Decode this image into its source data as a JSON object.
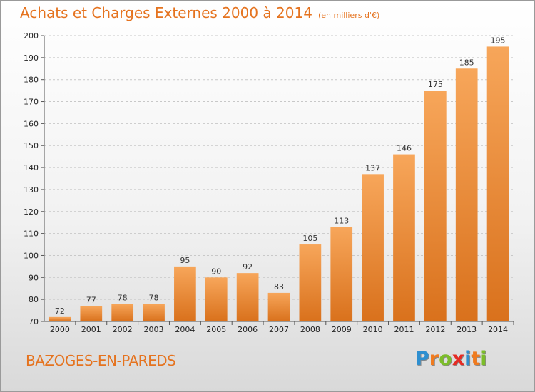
{
  "title": "Achats et Charges Externes 2000 à 2014",
  "subtitle": "(en milliers d'€)",
  "commune": "BAZOGES-EN-PAREDS",
  "logo": {
    "text": "Proxiti",
    "letters": [
      {
        "ch": "P",
        "color": "#2e8fd0"
      },
      {
        "ch": "r",
        "color": "#f07b1f"
      },
      {
        "ch": "o",
        "color": "#7cbd2a"
      },
      {
        "ch": "x",
        "color": "#e52b24"
      },
      {
        "ch": "i",
        "color": "#2e8fd0"
      },
      {
        "ch": "t",
        "color": "#f07b1f"
      },
      {
        "ch": "i",
        "color": "#7cbd2a"
      }
    ]
  },
  "colors": {
    "bar_top": "#f7a65a",
    "bar_bottom": "#d9711c",
    "grid": "#c8c8c8",
    "title": "#e5731f"
  },
  "chart_data": {
    "type": "bar",
    "title": "Achats et Charges Externes 2000 à 2014",
    "ylabel": "en milliers d'€",
    "xlabel": "",
    "ylim": [
      70,
      200
    ],
    "yticks": [
      70,
      80,
      90,
      100,
      110,
      120,
      130,
      140,
      150,
      160,
      170,
      180,
      190,
      200
    ],
    "grid": true,
    "categories": [
      "2000",
      "2001",
      "2002",
      "2003",
      "2004",
      "2005",
      "2006",
      "2007",
      "2008",
      "2009",
      "2010",
      "2011",
      "2012",
      "2013",
      "2014"
    ],
    "values": [
      72,
      77,
      78,
      78,
      95,
      90,
      92,
      83,
      105,
      113,
      137,
      146,
      175,
      185,
      195
    ]
  }
}
